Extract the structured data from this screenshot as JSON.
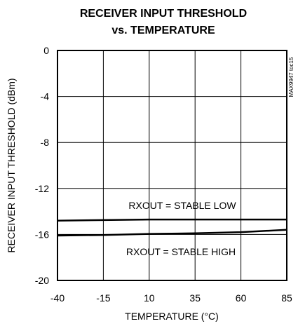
{
  "chart_data": {
    "type": "line",
    "title_line1": "RECEIVER INPUT THRESHOLD",
    "title_line2": "vs. TEMPERATURE",
    "xlabel": "TEMPERATURE (°C)",
    "ylabel": "RECEIVER INPUT THRESHOLD (dBm)",
    "xlim": [
      -40,
      85
    ],
    "ylim": [
      -20,
      0
    ],
    "xticks": [
      -40,
      -15,
      10,
      35,
      60,
      85
    ],
    "yticks": [
      0,
      -4,
      -8,
      -12,
      -16,
      -20
    ],
    "grid": true,
    "figure_code": "MAX9947 toc15",
    "series": [
      {
        "name": "RXOUT = STABLE LOW",
        "color": "#000000",
        "x": [
          -40,
          -15,
          10,
          35,
          60,
          85
        ],
        "y": [
          -14.8,
          -14.75,
          -14.7,
          -14.7,
          -14.7,
          -14.7
        ]
      },
      {
        "name": "RXOUT = STABLE HIGH",
        "color": "#000000",
        "x": [
          -40,
          -15,
          10,
          35,
          60,
          85
        ],
        "y": [
          -16.1,
          -16.05,
          -15.95,
          -15.9,
          -15.8,
          -15.6
        ]
      }
    ]
  }
}
